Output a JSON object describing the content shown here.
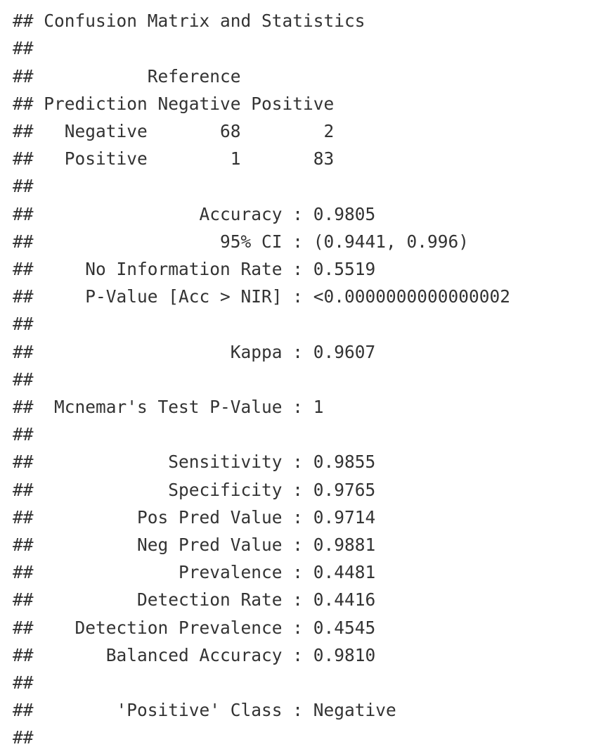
{
  "console": {
    "lines": [
      "## Confusion Matrix and Statistics",
      "##",
      "##           Reference",
      "## Prediction Negative Positive",
      "##   Negative       68        2",
      "##   Positive        1       83",
      "##",
      "##                Accuracy : 0.9805",
      "##                  95% CI : (0.9441, 0.996)",
      "##     No Information Rate : 0.5519",
      "##     P-Value [Acc > NIR] : <0.0000000000000002",
      "##",
      "##                   Kappa : 0.9607",
      "##",
      "##  Mcnemar's Test P-Value : 1",
      "##",
      "##             Sensitivity : 0.9855",
      "##             Specificity : 0.9765",
      "##          Pos Pred Value : 0.9714",
      "##          Neg Pred Value : 0.9881",
      "##              Prevalence : 0.4481",
      "##          Detection Rate : 0.4416",
      "##    Detection Prevalence : 0.4545",
      "##       Balanced Accuracy : 0.9810",
      "##",
      "##        'Positive' Class : Negative",
      "##"
    ]
  }
}
